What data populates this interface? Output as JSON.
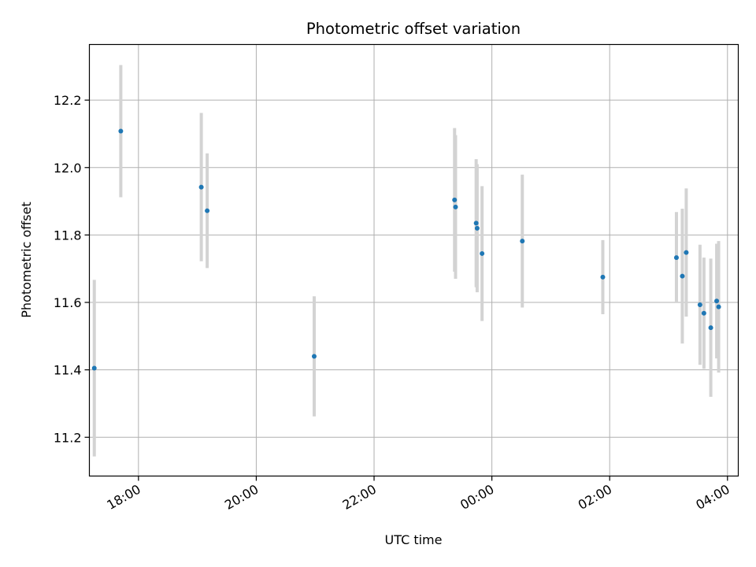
{
  "chart_data": {
    "type": "scatter",
    "title": "Photometric offset variation",
    "xlabel": "UTC time",
    "ylabel": "Photometric offset",
    "grid": true,
    "x_unit": "UTC time (HH:MM)",
    "x_ticks": [
      "18:00",
      "20:00",
      "22:00",
      "00:00",
      "02:00",
      "04:00"
    ],
    "y_ticks": [
      "11.2",
      "11.4",
      "11.6",
      "11.8",
      "12.0",
      "12.2"
    ],
    "ylim": [
      11.085,
      12.365
    ],
    "xlim": [
      "17:10",
      "04:11"
    ],
    "colors": {
      "point": "#1f77b4",
      "errorbar": "#d3d3d3",
      "grid": "#b0b0b0"
    },
    "series": [
      {
        "points": [
          {
            "x": "17:15",
            "y": 11.405,
            "err": 0.262
          },
          {
            "x": "17:42",
            "y": 12.108,
            "err": 0.196
          },
          {
            "x": "19:04",
            "y": 11.942,
            "err": 0.22
          },
          {
            "x": "19:10",
            "y": 11.872,
            "err": 0.17
          },
          {
            "x": "20:59",
            "y": 11.44,
            "err": 0.178
          },
          {
            "x": "23:22",
            "y": 11.904,
            "err": 0.213
          },
          {
            "x": "23:23",
            "y": 11.883,
            "err": 0.213
          },
          {
            "x": "23:44",
            "y": 11.835,
            "err": 0.19
          },
          {
            "x": "23:45",
            "y": 11.82,
            "err": 0.19
          },
          {
            "x": "23:50",
            "y": 11.745,
            "err": 0.2
          },
          {
            "x": "00:31",
            "y": 11.782,
            "err": 0.197
          },
          {
            "x": "01:53",
            "y": 11.675,
            "err": 0.11
          },
          {
            "x": "03:08",
            "y": 11.733,
            "err": 0.135
          },
          {
            "x": "03:14",
            "y": 11.678,
            "err": 0.2
          },
          {
            "x": "03:18",
            "y": 11.748,
            "err": 0.19
          },
          {
            "x": "03:32",
            "y": 11.593,
            "err": 0.178
          },
          {
            "x": "03:36",
            "y": 11.568,
            "err": 0.165
          },
          {
            "x": "03:43",
            "y": 11.525,
            "err": 0.205
          },
          {
            "x": "03:49",
            "y": 11.604,
            "err": 0.17
          },
          {
            "x": "03:51",
            "y": 11.587,
            "err": 0.195
          }
        ]
      }
    ]
  }
}
